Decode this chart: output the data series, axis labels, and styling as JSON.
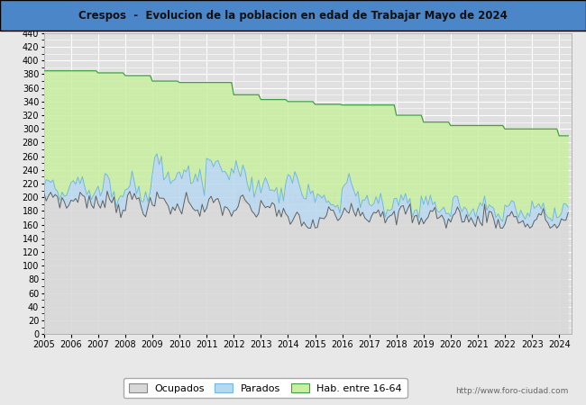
{
  "title": "Crespos  -  Evolucion de la poblacion en edad de Trabajar Mayo de 2024",
  "background_color": "#e8e8e8",
  "plot_bg_color": "#e0e0e0",
  "grid_color": "#ffffff",
  "header_bg_color": "#4a86c8",
  "ylim": [
    0,
    440
  ],
  "yticks": [
    0,
    20,
    40,
    60,
    80,
    100,
    120,
    140,
    160,
    180,
    200,
    220,
    240,
    260,
    280,
    300,
    320,
    340,
    360,
    380,
    400,
    420,
    440
  ],
  "xlim_start": 2005,
  "xlim_end": 2024.45,
  "xtick_years": [
    2005,
    2006,
    2007,
    2008,
    2009,
    2010,
    2011,
    2012,
    2013,
    2014,
    2015,
    2016,
    2017,
    2018,
    2019,
    2020,
    2021,
    2022,
    2023,
    2024
  ],
  "hab_year_values": [
    385,
    385,
    382,
    378,
    370,
    368,
    368,
    350,
    343,
    340,
    336,
    335,
    335,
    320,
    310,
    305,
    305,
    300,
    300,
    290
  ],
  "legend_labels": [
    "Ocupados",
    "Parados",
    "Hab. entre 16-64"
  ],
  "ocupados_fill_color": "#d8d8d8",
  "parados_fill_color": "#b8d8f0",
  "hab_fill_color": "#c8f0a0",
  "hab_line_color": "#40a040",
  "parados_line_color": "#70b8e0",
  "ocupados_line_color": "#606060",
  "watermark": "foro-ciudad.com",
  "url": "http://www.foro-ciudad.com"
}
